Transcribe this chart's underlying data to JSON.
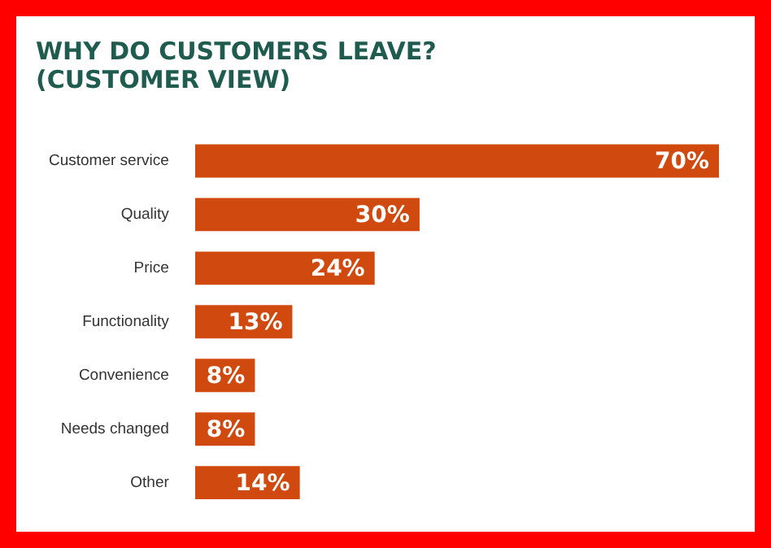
{
  "chart_data": {
    "type": "bar",
    "orientation": "horizontal",
    "title": "WHY DO CUSTOMERS LEAVE?\n(CUSTOMER VIEW)",
    "categories": [
      "Customer service",
      "Quality",
      "Price",
      "Functionality",
      "Convenience",
      "Needs changed",
      "Other"
    ],
    "values": [
      70,
      30,
      24,
      13,
      8,
      8,
      14
    ],
    "color": "#d04a0f",
    "value_labels": [
      "70%",
      "30%",
      "24%",
      "13%",
      "8%",
      "8%",
      "14%"
    ],
    "xlim": [
      0,
      70
    ],
    "tick_labels": "y"
  }
}
